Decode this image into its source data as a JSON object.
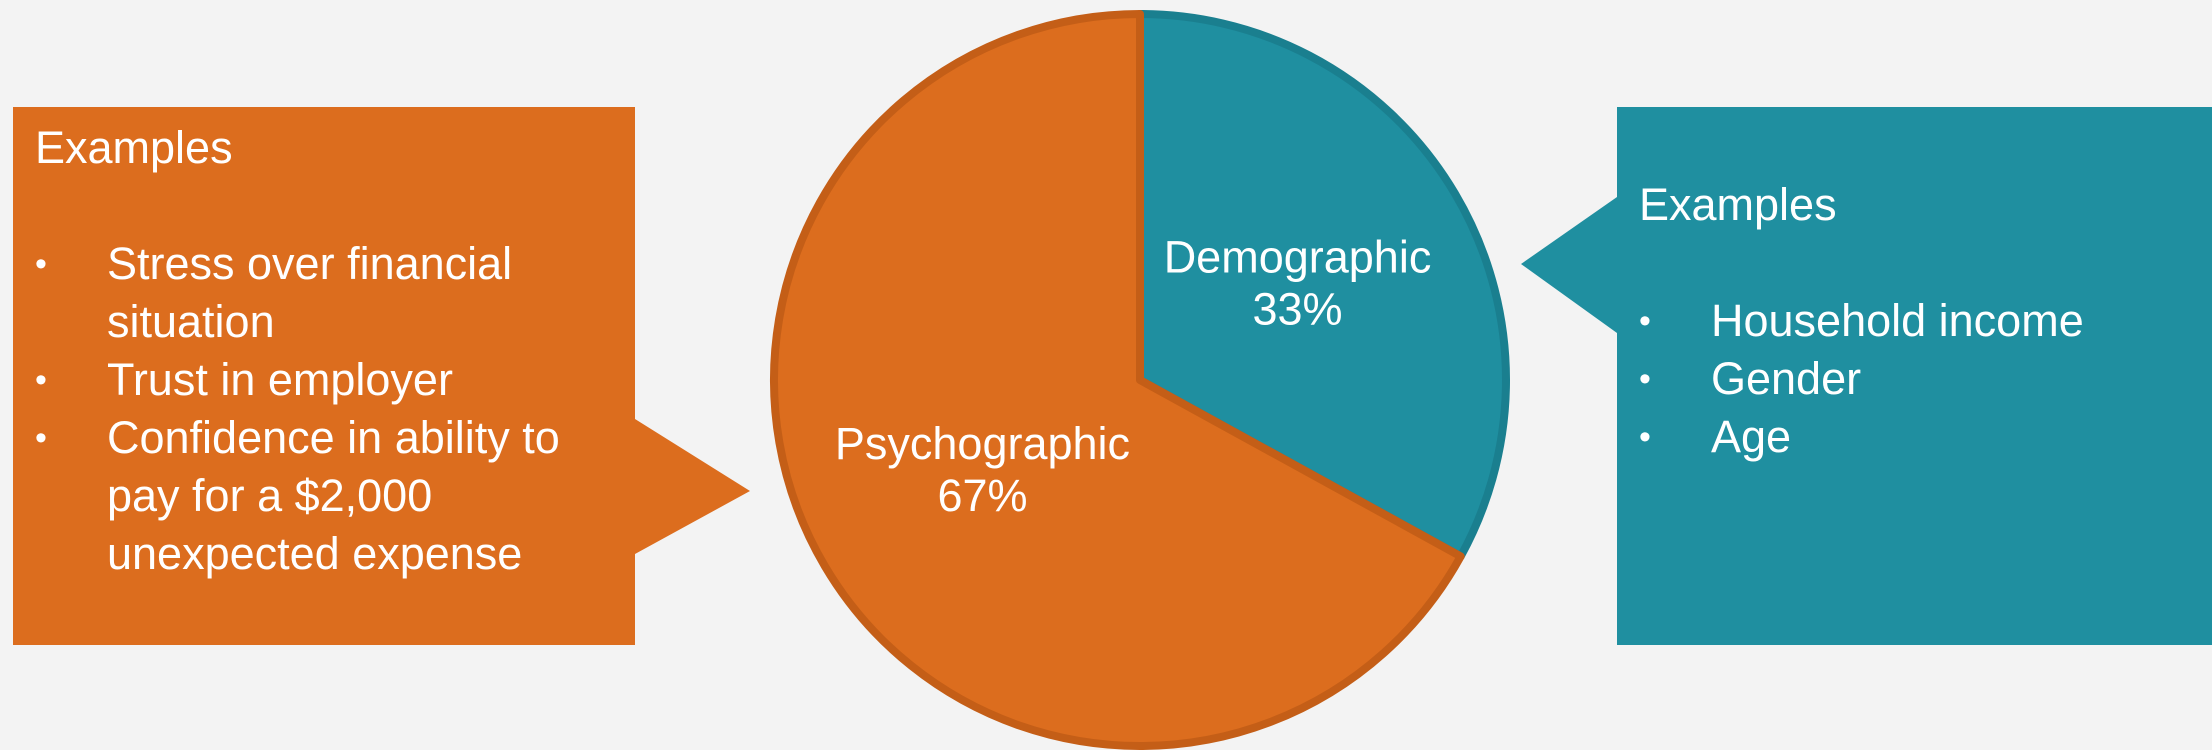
{
  "chart_data": {
    "type": "pie",
    "categories": [
      "Demographic",
      "Psychographic"
    ],
    "values": [
      33,
      67
    ],
    "value_labels": [
      "33%",
      "67%"
    ],
    "colors": [
      "#1f8fa0",
      "#dc6d1e"
    ]
  },
  "callouts": [
    {
      "title": "Examples",
      "items": [
        "Stress over financial situation",
        "Trust in employer",
        "Confidence in ability to pay for a $2,000 unexpected expense"
      ]
    },
    {
      "title": "Examples",
      "items": [
        "Household income",
        "Gender",
        "Age"
      ]
    }
  ]
}
